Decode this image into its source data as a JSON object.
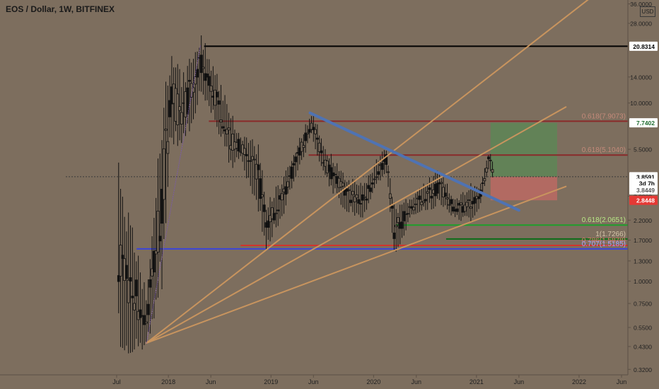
{
  "chart_data": {
    "type": "candlestick",
    "title": "EOS / Dollar, 1W, BITFINEX",
    "scale_mode": "log",
    "currency_label": "USD",
    "y_tick_labels": [
      "36.0000",
      "28.0000",
      "14.0000",
      "10.0000",
      "5.5000",
      "3.0000",
      "2.2000",
      "1.7000",
      "1.3000",
      "1.0000",
      "0.7500",
      "0.5500",
      "0.4300",
      "0.3200"
    ],
    "y_tick_values": [
      36,
      28,
      14,
      10,
      5.5,
      3,
      2.2,
      1.7,
      1.3,
      1.0,
      0.75,
      0.55,
      0.43,
      0.32
    ],
    "x_tick_labels": [
      "Jul",
      "2018",
      "Jun",
      "2019",
      "Jun",
      "2020",
      "Jun",
      "2021",
      "Jun",
      "2022",
      "Jun"
    ],
    "x_tick_dates": [
      "2017-07-01",
      "2018-01-01",
      "2018-06-01",
      "2019-01-01",
      "2019-06-01",
      "2020-01-01",
      "2020-06-01",
      "2021-01-01",
      "2021-06-01",
      "2022-01-01",
      "2022-06-01"
    ],
    "price_badges": [
      {
        "label": "20.8314",
        "value": 20.8314,
        "bg": "#ffffff",
        "fg": "#000000"
      },
      {
        "label": "7.7402",
        "value": 7.7402,
        "bg": "#ffffff",
        "fg": "#1e6b2e"
      },
      {
        "label": "3.8591",
        "value": 3.8591,
        "bg": "#ffffff",
        "fg": "#000000"
      },
      {
        "label": "3d 7h",
        "value": 3.55,
        "bg": "#ffffff",
        "fg": "#000000"
      },
      {
        "label": "3.8449",
        "value": 3.25,
        "bg": "#ffffff",
        "fg": "#555555"
      },
      {
        "label": "2.8448",
        "value": 2.8448,
        "bg": "#e53935",
        "fg": "#ffffff"
      }
    ],
    "fib_labels": [
      {
        "text": "0.618(7.9073)",
        "value": 7.9073,
        "color": "#c48a7a"
      },
      {
        "text": "0.618(5.1040)",
        "value": 5.104,
        "color": "#c48a7a"
      },
      {
        "text": "0.618(2.0651)",
        "value": 2.0651,
        "color": "#b8e986"
      },
      {
        "text": "1(1.7266)",
        "value": 1.7266,
        "color": "#d4c4a8"
      },
      {
        "text": "0.786(1.5878)",
        "value": 1.5878,
        "color": "#e07b6a"
      },
      {
        "text": "0.707(1.5185)",
        "value": 1.5185,
        "color": "#9ea7ff"
      }
    ],
    "horizontal_lines": [
      {
        "value": 20.8314,
        "from": "2018-05-08",
        "to": "2022-07-01",
        "color": "#000000"
      },
      {
        "value": 7.9073,
        "from": "2018-05-25",
        "to": "2022-07-01",
        "color": "#8a2a2a"
      },
      {
        "value": 5.104,
        "from": "2019-05-15",
        "to": "2022-07-01",
        "color": "#8a2a2a"
      },
      {
        "value": 3.8591,
        "from": "2017-01-01",
        "to": "2022-07-01",
        "color": "#3a3a3a",
        "dashed": true
      },
      {
        "value": 2.0651,
        "from": "2020-03-20",
        "to": "2022-07-01",
        "color": "#1f9e2b"
      },
      {
        "value": 1.7266,
        "from": "2020-09-15",
        "to": "2022-07-01",
        "color": "#0d6d18"
      },
      {
        "value": 1.5878,
        "from": "2018-09-15",
        "to": "2022-07-01",
        "color": "#d0342c"
      },
      {
        "value": 1.5185,
        "from": "2017-09-10",
        "to": "2022-07-01",
        "color": "#3b44d9"
      }
    ],
    "trend_lines": [
      {
        "from": [
          "2017-10-15",
          0.45
        ],
        "to": [
          "2022-02-20",
          40
        ],
        "color": "#c8945e"
      },
      {
        "from": [
          "2017-10-15",
          0.45
        ],
        "to": [
          "2021-11-15",
          9.5
        ],
        "color": "#c8945e"
      },
      {
        "from": [
          "2017-10-15",
          0.45
        ],
        "to": [
          "2021-11-15",
          3.4
        ],
        "color": "#c8945e"
      },
      {
        "from": [
          "2019-05-20",
          8.8
        ],
        "to": [
          "2021-06-01",
          2.5
        ],
        "color": "#4f73b3"
      },
      {
        "from": [
          "2017-10-15",
          0.45
        ],
        "to": [
          "2018-04-25",
          21
        ],
        "color": "#7a5aaa",
        "dashed": true
      }
    ],
    "zones": [
      {
        "from": "2021-02-20",
        "to": "2021-10-15",
        "top": 7.7402,
        "bottom": 3.8591,
        "color": "#5a8a56"
      },
      {
        "from": "2021-02-20",
        "to": "2021-10-15",
        "top": 3.8591,
        "bottom": 2.8448,
        "color": "#c46a64"
      }
    ],
    "anchors": [
      {
        "date": "2017-07-08",
        "low": 0.49,
        "high": 3.6
      },
      {
        "date": "2017-10-15",
        "low": 0.45,
        "high": 0.8
      },
      {
        "date": "2017-12-10",
        "low": 1.2,
        "high": 7.5
      },
      {
        "date": "2018-01-10",
        "low": 7,
        "high": 19
      },
      {
        "date": "2018-02-15",
        "low": 5.5,
        "high": 13
      },
      {
        "date": "2018-04-29",
        "low": 12,
        "high": 22.5
      },
      {
        "date": "2018-06-20",
        "low": 8,
        "high": 14
      },
      {
        "date": "2018-08-15",
        "low": 4.5,
        "high": 8
      },
      {
        "date": "2018-09-15",
        "low": 5,
        "high": 6.5
      },
      {
        "date": "2018-11-20",
        "low": 2.5,
        "high": 5.5
      },
      {
        "date": "2018-12-15",
        "low": 1.6,
        "high": 2.6
      },
      {
        "date": "2019-02-15",
        "low": 2.5,
        "high": 3.8
      },
      {
        "date": "2019-04-10",
        "low": 4.5,
        "high": 6
      },
      {
        "date": "2019-05-25",
        "low": 6.5,
        "high": 8.8
      },
      {
        "date": "2019-07-15",
        "low": 3.8,
        "high": 5.5
      },
      {
        "date": "2019-09-20",
        "low": 2.6,
        "high": 3.8
      },
      {
        "date": "2019-11-25",
        "low": 2.3,
        "high": 3.4
      },
      {
        "date": "2020-01-15",
        "low": 3.5,
        "high": 4.8
      },
      {
        "date": "2020-02-15",
        "low": 4.2,
        "high": 5.5
      },
      {
        "date": "2020-03-15",
        "low": 1.45,
        "high": 2.5
      },
      {
        "date": "2020-05-15",
        "low": 2.3,
        "high": 2.9
      },
      {
        "date": "2020-08-20",
        "low": 2.8,
        "high": 4.2
      },
      {
        "date": "2020-10-15",
        "low": 2.3,
        "high": 2.8
      },
      {
        "date": "2020-12-10",
        "low": 2.2,
        "high": 3.4
      },
      {
        "date": "2021-01-10",
        "low": 2.5,
        "high": 3.2
      },
      {
        "date": "2021-02-15",
        "low": 4.5,
        "high": 5.4
      },
      {
        "date": "2021-03-01",
        "low": 3.6,
        "high": 4.5
      }
    ]
  }
}
